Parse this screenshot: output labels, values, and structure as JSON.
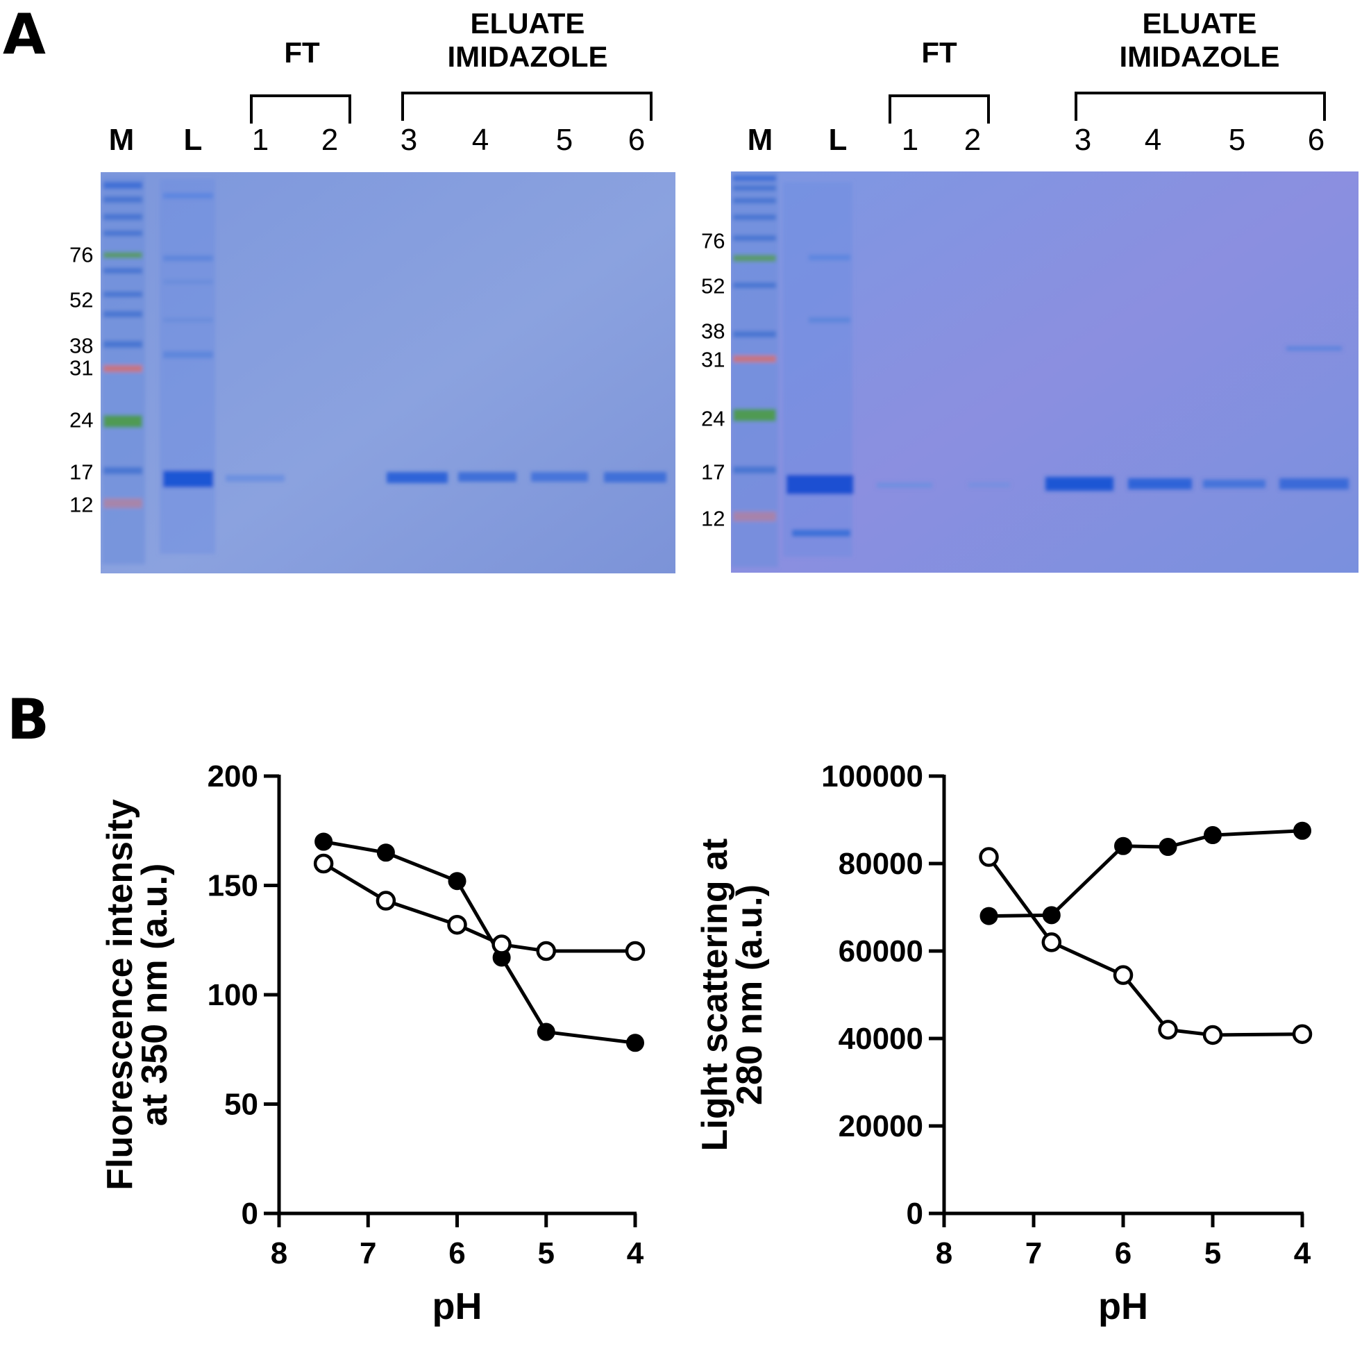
{
  "panel_a": {
    "letter": "A",
    "gels": [
      {
        "lanes": [
          "M",
          "L",
          "1",
          "2",
          "3",
          "4",
          "5",
          "6"
        ],
        "ft_label": "FT",
        "eluate_label_line1": "ELUATE",
        "eluate_label_line2": "IMIDAZOLE",
        "mw_markers": [
          "76",
          "52",
          "38",
          "31",
          "24",
          "17",
          "12"
        ]
      },
      {
        "lanes": [
          "M",
          "L",
          "1",
          "2",
          "3",
          "4",
          "5",
          "6"
        ],
        "ft_label": "FT",
        "eluate_label_line1": "ELUATE",
        "eluate_label_line2": "IMIDAZOLE",
        "mw_markers": [
          "76",
          "52",
          "38",
          "31",
          "24",
          "17",
          "12"
        ]
      }
    ],
    "colors": {
      "gel": "#7a92dc",
      "band": "#2a5fd4",
      "ladder_green": "#4f9a52",
      "ladder_red": "#c46a78"
    }
  },
  "panel_b": {
    "letter": "B"
  },
  "chart_data": [
    {
      "type": "line",
      "xlabel": "pH",
      "ylabel_line1": "Fluorescence intensity",
      "ylabel_line2": "at 350 nm (a.u.)",
      "xlim": [
        8,
        4
      ],
      "ylim": [
        0,
        200
      ],
      "x_ticks": [
        "8",
        "7",
        "6",
        "5",
        "4"
      ],
      "y_ticks": [
        "0",
        "50",
        "100",
        "150",
        "200"
      ],
      "x": [
        7.5,
        6.8,
        6.0,
        5.5,
        5.0,
        4.0
      ],
      "series": [
        {
          "marker": "filled",
          "values": [
            170,
            165,
            152,
            117,
            83,
            78
          ]
        },
        {
          "marker": "open",
          "values": [
            160,
            143,
            132,
            123,
            120,
            120
          ]
        }
      ]
    },
    {
      "type": "line",
      "xlabel": "pH",
      "ylabel_line1": "Light scattering at",
      "ylabel_line2": "280 nm (a.u.)",
      "xlim": [
        8,
        4
      ],
      "ylim": [
        0,
        100000
      ],
      "x_ticks": [
        "8",
        "7",
        "6",
        "5",
        "4"
      ],
      "y_ticks": [
        "0",
        "20000",
        "40000",
        "60000",
        "80000",
        "100000"
      ],
      "x": [
        7.5,
        6.8,
        6.0,
        5.5,
        5.0,
        4.0
      ],
      "series": [
        {
          "marker": "filled",
          "values": [
            68000,
            68200,
            84000,
            83800,
            86500,
            87500
          ]
        },
        {
          "marker": "open",
          "values": [
            81500,
            62000,
            54500,
            42000,
            40800,
            41000
          ]
        }
      ]
    }
  ]
}
